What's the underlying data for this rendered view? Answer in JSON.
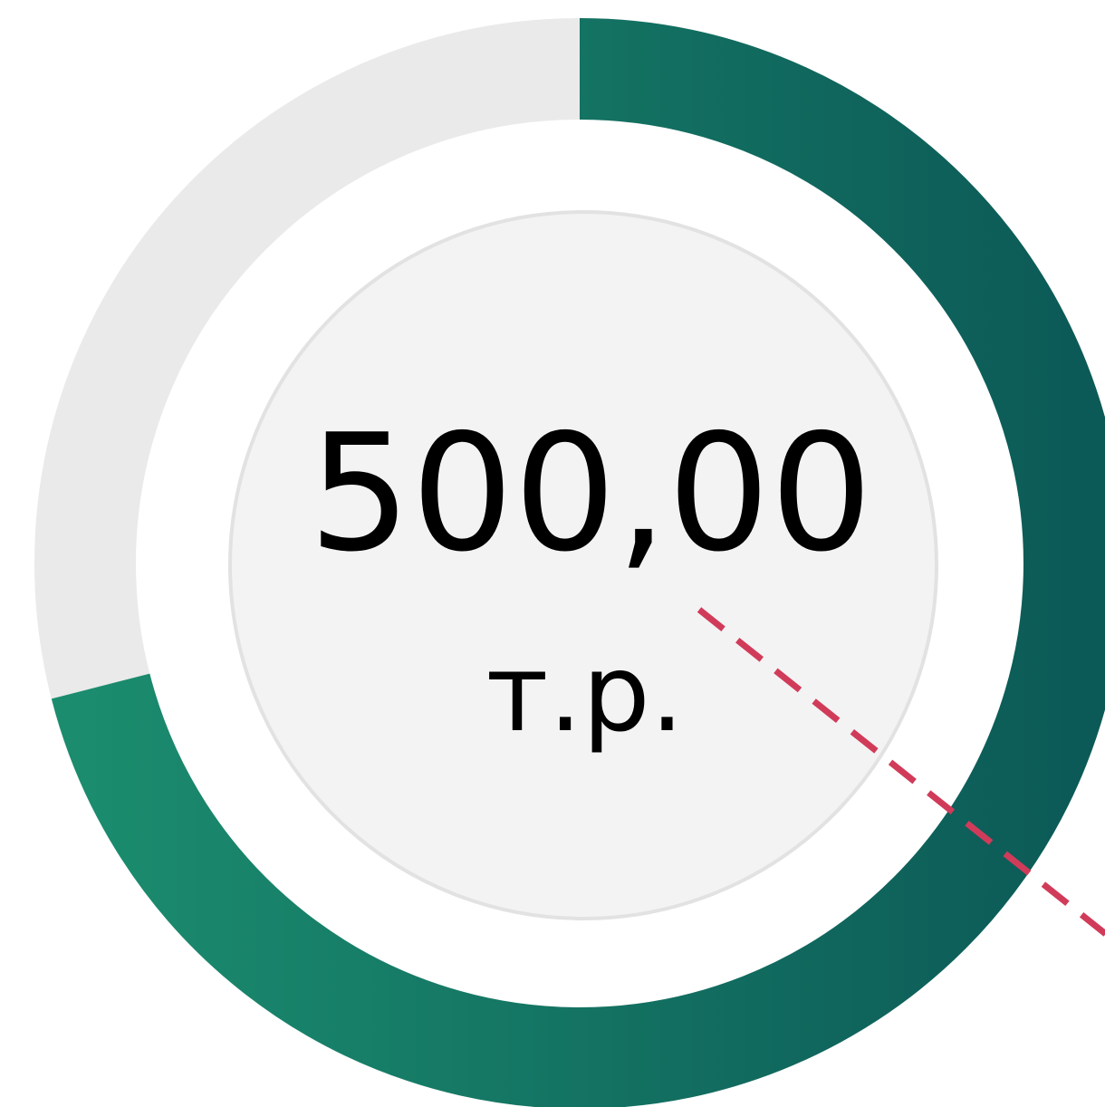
{
  "widget": {
    "amount": "500,00",
    "unit": "т.р.",
    "progress": 71
  }
}
